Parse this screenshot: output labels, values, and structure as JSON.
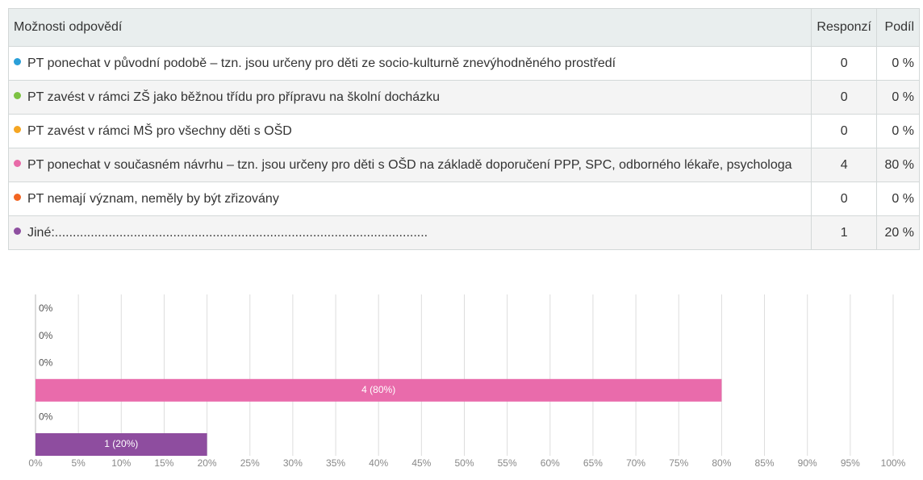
{
  "table": {
    "header": [
      "Možnosti odpovědí",
      "Responzí",
      "Podíl"
    ],
    "rows": [
      {
        "label": "PT ponechat v původní podobě – tzn. jsou určeny pro děti ze socio-kulturně znevýhodněného prostředí",
        "color": "#2a9fd8",
        "responses": 0,
        "share": "0 %"
      },
      {
        "label": "PT zavést v rámci ZŠ jako běžnou třídu pro přípravu na školní docházku",
        "color": "#7dc242",
        "responses": 0,
        "share": "0 %"
      },
      {
        "label": "PT zavést v rámci MŠ pro všechny děti s OŠD",
        "color": "#f5a623",
        "responses": 0,
        "share": "0 %"
      },
      {
        "label": "PT ponechat v současném návrhu – tzn. jsou určeny pro děti s OŠD na základě doporučení PPP, SPC, odborného lékaře, psychologa",
        "color": "#e86aa8",
        "responses": 4,
        "share": "80 %"
      },
      {
        "label": "PT nemají význam, neměly by být zřizovány",
        "color": "#f26522",
        "responses": 0,
        "share": "0 %"
      },
      {
        "label": "Jiné:........................................................................................................",
        "color": "#8e4fa0",
        "responses": 1,
        "share": "20 %"
      }
    ]
  },
  "chart_data": {
    "type": "bar",
    "orientation": "horizontal",
    "categories": [
      null,
      null,
      null,
      null,
      null,
      null
    ],
    "values": [
      0,
      0,
      0,
      80,
      0,
      20
    ],
    "value_labels": [
      "0%",
      "0%",
      "0%",
      "4 (80%)",
      "0%",
      "1 (20%)"
    ],
    "colors": [
      "#2a9fd8",
      "#7dc242",
      "#f5a623",
      "#e96bab",
      "#f26522",
      "#8e4d9f"
    ],
    "xlim": [
      0,
      100
    ],
    "xticks": [
      {
        "value": 0,
        "label": "0%"
      },
      {
        "value": 5,
        "label": "5%"
      },
      {
        "value": 10,
        "label": "10%"
      },
      {
        "value": 15,
        "label": "15%"
      },
      {
        "value": 20,
        "label": "20%"
      },
      {
        "value": 25,
        "label": "25%"
      },
      {
        "value": 30,
        "label": "30%"
      },
      {
        "value": 35,
        "label": "35%"
      },
      {
        "value": 40,
        "label": "40%"
      },
      {
        "value": 45,
        "label": "45%"
      },
      {
        "value": 50,
        "label": "50%"
      },
      {
        "value": 55,
        "label": "55%"
      },
      {
        "value": 60,
        "label": "60%"
      },
      {
        "value": 65,
        "label": "65%"
      },
      {
        "value": 70,
        "label": "70%"
      },
      {
        "value": 75,
        "label": "75%"
      },
      {
        "value": 80,
        "label": "80%"
      },
      {
        "value": 85,
        "label": "85%"
      },
      {
        "value": 90,
        "label": "90%"
      },
      {
        "value": 95,
        "label": "95%"
      },
      {
        "value": 100,
        "label": "100%"
      }
    ],
    "grid": true
  }
}
